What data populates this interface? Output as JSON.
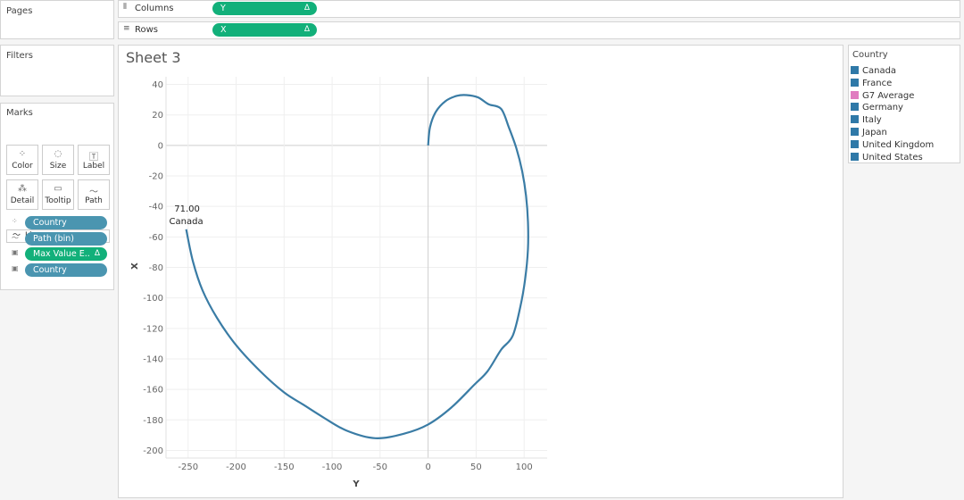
{
  "panels": {
    "pages": "Pages",
    "filters": "Filters",
    "marks": "Marks"
  },
  "shelves": [
    {
      "label": "Columns",
      "pill": "Y",
      "flag": "Δ"
    },
    {
      "label": "Rows",
      "pill": "X",
      "flag": "Δ"
    }
  ],
  "marks_card": {
    "mark_type": "Line",
    "buttons": [
      "Color",
      "Size",
      "Label",
      "Detail",
      "Tooltip",
      "Path"
    ],
    "pills": [
      {
        "text": "Country"
      },
      {
        "text": "Path (bin)"
      },
      {
        "text": "Max Value E..",
        "flag": "Δ"
      },
      {
        "text": "Country"
      }
    ]
  },
  "legend": {
    "title": "Country",
    "items": [
      {
        "name": "Canada",
        "color": "#2f79a8"
      },
      {
        "name": "France",
        "color": "#2f79a8"
      },
      {
        "name": "G7 Average",
        "color": "#e07cc0"
      },
      {
        "name": "Germany",
        "color": "#2f79a8"
      },
      {
        "name": "Italy",
        "color": "#2f79a8"
      },
      {
        "name": "Japan",
        "color": "#2f79a8"
      },
      {
        "name": "United Kingdom",
        "color": "#2f79a8"
      },
      {
        "name": "United States",
        "color": "#2f79a8"
      }
    ]
  },
  "chart_data": {
    "type": "line",
    "title": "Sheet 3",
    "x_label": "Y",
    "y_label": "X",
    "annotations": [
      "71.00",
      "Canada"
    ],
    "x": [
      0,
      2,
      8,
      18,
      30,
      40,
      52,
      63,
      76,
      84,
      92,
      98,
      102,
      104,
      104,
      101,
      96,
      88,
      76,
      62,
      48,
      24,
      0,
      -25,
      -55,
      -85,
      -110,
      -130,
      -150,
      -175,
      -200,
      -220,
      -235,
      -245,
      -252
    ],
    "series": [
      {
        "name": "Canada",
        "color": "#3a7ca5",
        "values": [
          0,
          12,
          22,
          29,
          32.5,
          33,
          31.5,
          27,
          24,
          12,
          -2,
          -17,
          -33,
          -50,
          -68,
          -88,
          -106,
          -125,
          -134,
          -148,
          -157,
          -172,
          -183,
          -189,
          -192,
          -187,
          -178,
          -170,
          -162,
          -148,
          -131,
          -113,
          -95,
          -76,
          -55
        ]
      }
    ],
    "xlim": [
      -273,
      124
    ],
    "ylim": [
      -205,
      45
    ],
    "xticks": [
      -250,
      -200,
      -150,
      -100,
      -50,
      0,
      50,
      100
    ],
    "yticks": [
      40,
      20,
      0,
      -20,
      -40,
      -60,
      -80,
      -100,
      -120,
      -140,
      -160,
      -180,
      -200
    ],
    "grid": true
  }
}
